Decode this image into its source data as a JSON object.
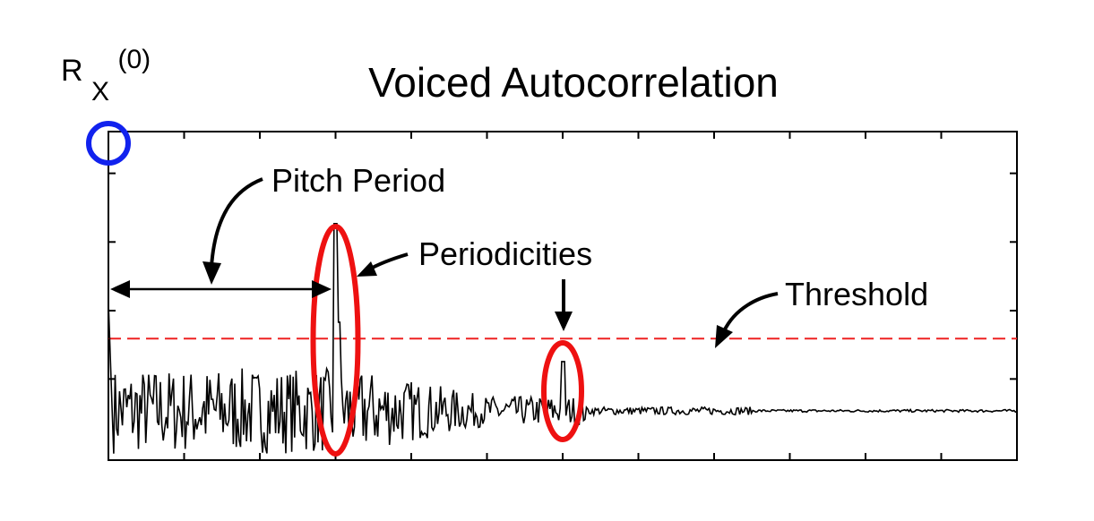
{
  "chart_data": {
    "type": "line",
    "title": "Voiced Autocorrelation",
    "y_axis_marker": {
      "main": "R",
      "sub": "X",
      "sup": "(0)"
    },
    "xlim": [
      0,
      12
    ],
    "ylim": [
      0,
      1
    ],
    "threshold": 0.37,
    "baseline": 0.15,
    "peaks": [
      {
        "x": 0,
        "y": 1.0
      },
      {
        "x": 3.0,
        "y": 0.72
      },
      {
        "x": 6.0,
        "y": 0.3
      }
    ],
    "annotations": {
      "pitch_period": "Pitch Period",
      "periodicities": "Periodicities",
      "threshold": "Threshold"
    },
    "colors": {
      "trace": "#000000",
      "threshold": "#ee2222",
      "periodicity_ellipse": "#ee1111",
      "origin_marker": "#1122ee"
    }
  }
}
